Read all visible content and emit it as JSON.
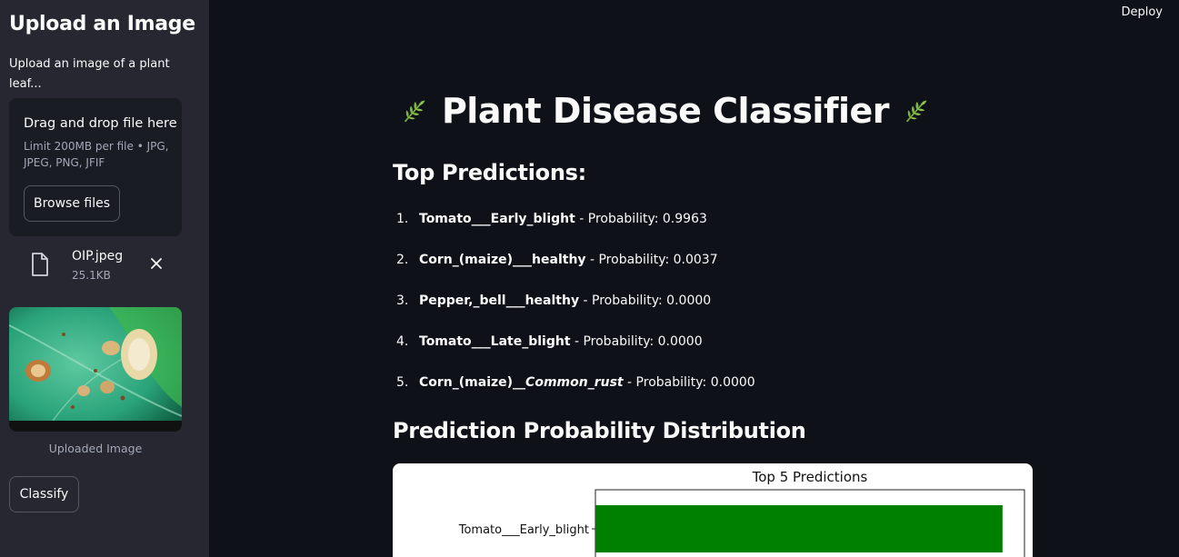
{
  "sidebar": {
    "title": "Upload an Image",
    "description": "Upload an image of a plant leaf...",
    "dropzone": {
      "title": "Drag and drop file here",
      "limit": "Limit 200MB per file • JPG, JPEG, PNG, JFIF",
      "browse_label": "Browse files"
    },
    "file": {
      "name": "OIP.jpeg",
      "size": "25.1KB",
      "icon": "file-icon"
    },
    "image_caption": "Uploaded Image",
    "classify_label": "Classify"
  },
  "header": {
    "deploy_label": "Deploy"
  },
  "main": {
    "title": "Plant Disease Classifier",
    "title_icon": "herb-icon",
    "predictions_heading": "Top Predictions:",
    "predictions": [
      {
        "num": "1.",
        "name_html": "Tomato___Early_blight",
        "prob": " - Probability: 0.9963"
      },
      {
        "num": "2.",
        "name_html": "Corn_(maize)___healthy",
        "prob": " - Probability: 0.0037"
      },
      {
        "num": "3.",
        "name_html": "Pepper,_bell___healthy",
        "prob": " - Probability: 0.0000"
      },
      {
        "num": "4.",
        "name_html": "Tomato___Late_blight",
        "prob": " - Probability: 0.0000"
      },
      {
        "num": "5.",
        "name_html": "Corn_(maize)__Common_rust",
        "prob": " - Probability: 0.0000"
      }
    ],
    "distribution_heading": "Prediction Probability Distribution"
  },
  "chart_data": {
    "type": "bar",
    "orientation": "horizontal",
    "title": "Top 5 Predictions",
    "categories": [
      "Tomato___Early_blight"
    ],
    "values": [
      0.9963
    ],
    "bar_color": "#008000",
    "xlim": [
      0,
      1.05
    ]
  },
  "colors": {
    "background": "#0e1117",
    "sidebar": "#262730",
    "text": "#fafafa",
    "muted": "#a3a8b8",
    "herb": "#7cb342"
  }
}
